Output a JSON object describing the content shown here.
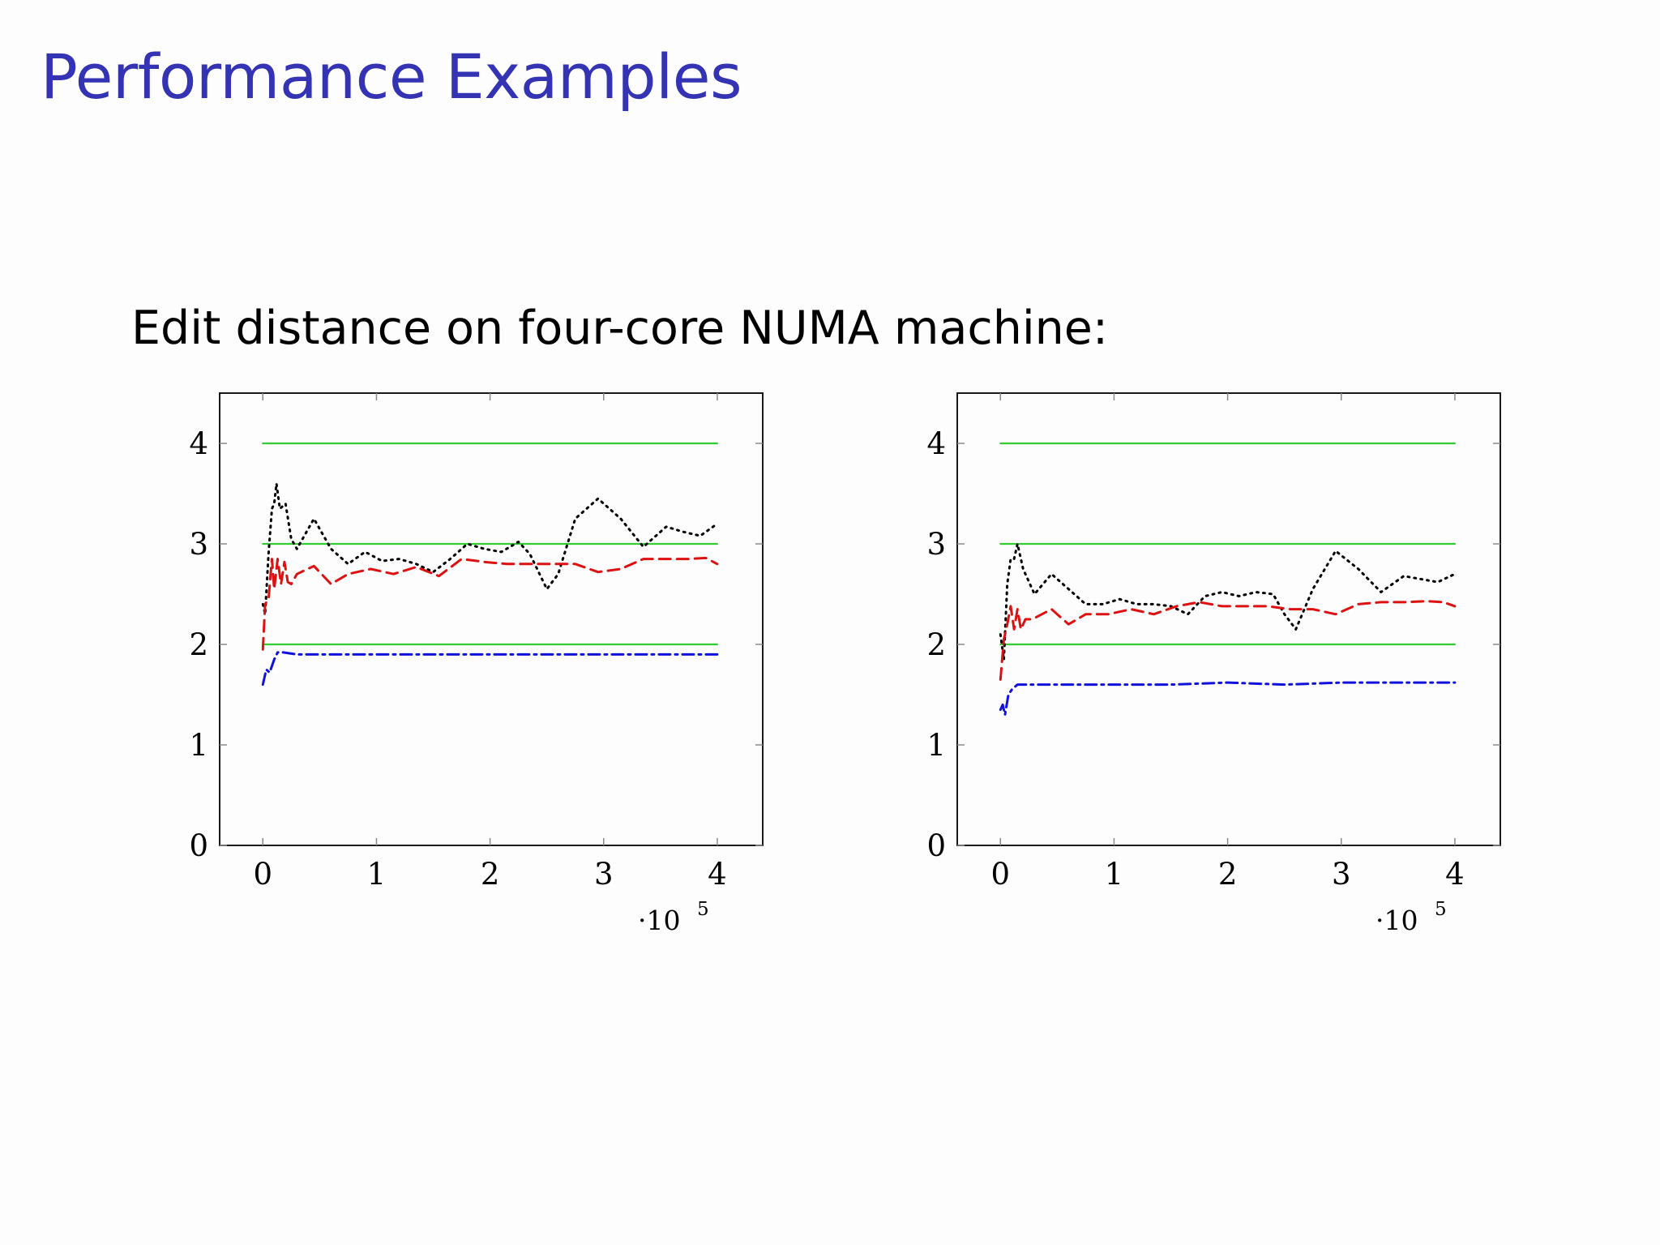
{
  "slide": {
    "title": "Performance Examples",
    "subtitle": "Edit distance on four-core NUMA machine:"
  },
  "colors": {
    "title": "#3333b3",
    "green": "#33cc33",
    "black": "#000000",
    "red": "#dd1111",
    "blue": "#1111dd"
  },
  "chart_data": [
    {
      "type": "line",
      "title": "",
      "xlabel": "",
      "ylabel": "",
      "x_scale_label": "·10",
      "x_scale_exponent": "5",
      "xlim": [
        -0.38,
        4.4
      ],
      "ylim": [
        0,
        4.5
      ],
      "x_ticks": [
        0,
        1,
        2,
        3,
        4
      ],
      "y_ticks": [
        0,
        1,
        2,
        3,
        4
      ],
      "grid": false,
      "legend": "none",
      "series": [
        {
          "style": "solid",
          "color": "green",
          "x": [
            0,
            4
          ],
          "y": [
            4,
            4
          ]
        },
        {
          "style": "solid",
          "color": "green",
          "x": [
            0,
            4
          ],
          "y": [
            3,
            3
          ]
        },
        {
          "style": "solid",
          "color": "green",
          "x": [
            0,
            4
          ],
          "y": [
            2,
            2
          ]
        },
        {
          "style": "dotted",
          "color": "black",
          "x": [
            0,
            0.02,
            0.05,
            0.08,
            0.1,
            0.12,
            0.15,
            0.2,
            0.25,
            0.3,
            0.45,
            0.6,
            0.75,
            0.9,
            1.05,
            1.2,
            1.35,
            1.5,
            1.65,
            1.8,
            1.95,
            2.1,
            2.25,
            2.35,
            2.5,
            2.6,
            2.75,
            2.95,
            3.15,
            3.35,
            3.55,
            3.7,
            3.85,
            4.0
          ],
          "y": [
            2.4,
            2.3,
            2.9,
            3.35,
            3.4,
            3.6,
            3.35,
            3.4,
            3.05,
            2.95,
            3.25,
            2.95,
            2.8,
            2.92,
            2.83,
            2.85,
            2.8,
            2.72,
            2.85,
            3.0,
            2.95,
            2.92,
            3.02,
            2.9,
            2.55,
            2.7,
            3.25,
            3.45,
            3.25,
            2.97,
            3.17,
            3.12,
            3.08,
            3.2
          ]
        },
        {
          "style": "dashed",
          "color": "red",
          "x": [
            0,
            0.02,
            0.05,
            0.08,
            0.1,
            0.13,
            0.16,
            0.19,
            0.22,
            0.25,
            0.3,
            0.45,
            0.6,
            0.75,
            0.95,
            1.15,
            1.35,
            1.55,
            1.75,
            1.95,
            2.15,
            2.35,
            2.55,
            2.75,
            2.95,
            3.15,
            3.35,
            3.55,
            3.75,
            3.9,
            4.0
          ],
          "y": [
            1.95,
            2.4,
            2.45,
            2.85,
            2.55,
            2.85,
            2.6,
            2.82,
            2.62,
            2.6,
            2.7,
            2.78,
            2.6,
            2.7,
            2.75,
            2.7,
            2.77,
            2.68,
            2.85,
            2.82,
            2.8,
            2.8,
            2.8,
            2.8,
            2.72,
            2.75,
            2.85,
            2.85,
            2.85,
            2.86,
            2.8
          ]
        },
        {
          "style": "dashdot",
          "color": "blue",
          "x": [
            0,
            0.03,
            0.06,
            0.1,
            0.13,
            0.18,
            0.3,
            0.5,
            0.8,
            1.0,
            1.5,
            2.0,
            2.5,
            3.0,
            3.5,
            4.0
          ],
          "y": [
            1.6,
            1.75,
            1.72,
            1.85,
            1.92,
            1.92,
            1.9,
            1.9,
            1.9,
            1.9,
            1.9,
            1.9,
            1.9,
            1.9,
            1.9,
            1.9
          ]
        }
      ]
    },
    {
      "type": "line",
      "title": "",
      "xlabel": "",
      "ylabel": "",
      "x_scale_label": "·10",
      "x_scale_exponent": "5",
      "xlim": [
        -0.38,
        4.4
      ],
      "ylim": [
        0,
        4.5
      ],
      "x_ticks": [
        0,
        1,
        2,
        3,
        4
      ],
      "y_ticks": [
        0,
        1,
        2,
        3,
        4
      ],
      "grid": false,
      "legend": "none",
      "series": [
        {
          "style": "solid",
          "color": "green",
          "x": [
            0,
            4
          ],
          "y": [
            4,
            4
          ]
        },
        {
          "style": "solid",
          "color": "green",
          "x": [
            0,
            4
          ],
          "y": [
            3,
            3
          ]
        },
        {
          "style": "solid",
          "color": "green",
          "x": [
            0,
            4
          ],
          "y": [
            2,
            2
          ]
        },
        {
          "style": "dotted",
          "color": "black",
          "x": [
            0,
            0.03,
            0.06,
            0.09,
            0.12,
            0.15,
            0.2,
            0.3,
            0.45,
            0.6,
            0.75,
            0.9,
            1.05,
            1.2,
            1.35,
            1.5,
            1.65,
            1.8,
            1.95,
            2.1,
            2.25,
            2.4,
            2.5,
            2.6,
            2.75,
            2.95,
            3.15,
            3.35,
            3.55,
            3.7,
            3.85,
            4.0
          ],
          "y": [
            2.1,
            1.85,
            2.6,
            2.85,
            2.85,
            3.0,
            2.75,
            2.5,
            2.7,
            2.55,
            2.4,
            2.4,
            2.45,
            2.4,
            2.4,
            2.38,
            2.3,
            2.48,
            2.52,
            2.48,
            2.52,
            2.5,
            2.3,
            2.15,
            2.55,
            2.93,
            2.75,
            2.52,
            2.68,
            2.65,
            2.62,
            2.7
          ]
        },
        {
          "style": "dashed",
          "color": "red",
          "x": [
            0,
            0.03,
            0.06,
            0.09,
            0.12,
            0.15,
            0.18,
            0.22,
            0.28,
            0.45,
            0.6,
            0.75,
            0.95,
            1.15,
            1.35,
            1.55,
            1.75,
            1.95,
            2.15,
            2.35,
            2.55,
            2.75,
            2.95,
            3.15,
            3.35,
            3.55,
            3.75,
            3.9,
            4.0
          ],
          "y": [
            1.65,
            2.05,
            2.2,
            2.38,
            2.15,
            2.35,
            2.15,
            2.25,
            2.25,
            2.35,
            2.2,
            2.3,
            2.3,
            2.35,
            2.3,
            2.38,
            2.42,
            2.38,
            2.38,
            2.38,
            2.35,
            2.35,
            2.3,
            2.4,
            2.42,
            2.42,
            2.43,
            2.42,
            2.38
          ]
        },
        {
          "style": "dashdot",
          "color": "blue",
          "x": [
            0,
            0.02,
            0.04,
            0.07,
            0.1,
            0.15,
            0.3,
            0.5,
            0.8,
            1.0,
            1.5,
            2.0,
            2.5,
            3.0,
            3.5,
            4.0
          ],
          "y": [
            1.35,
            1.4,
            1.3,
            1.5,
            1.55,
            1.6,
            1.6,
            1.6,
            1.6,
            1.6,
            1.6,
            1.62,
            1.6,
            1.62,
            1.62,
            1.62
          ]
        }
      ]
    }
  ]
}
